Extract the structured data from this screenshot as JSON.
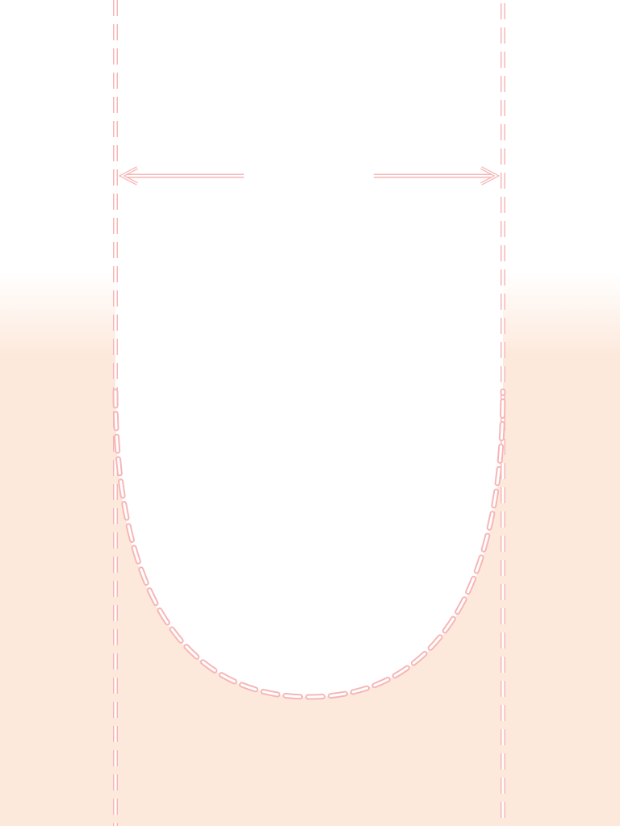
{
  "colors": {
    "background_top": "#ffffff",
    "background_bottom": "#fde9dc",
    "guide_stroke": "#f7b6b6",
    "guide_fill": "#ffffff"
  },
  "elements": {
    "guide_lines": [
      "left-guide-line",
      "right-guide-line"
    ],
    "arrows": [
      "left-arrow",
      "right-arrow"
    ],
    "curve": "u-shaped-dashed-curve"
  }
}
